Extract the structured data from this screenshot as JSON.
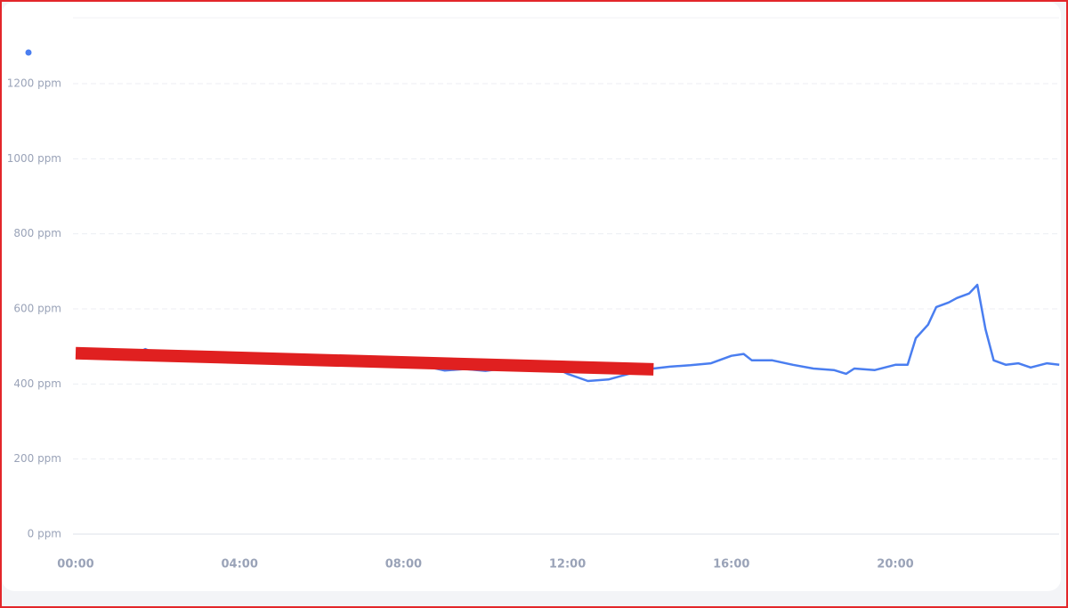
{
  "chart_data": {
    "type": "line",
    "x": [
      0,
      0.5,
      1,
      1.5,
      1.7,
      2,
      2.5,
      3,
      3.5,
      4,
      4.5,
      5,
      5.5,
      6,
      6.5,
      7,
      7.5,
      8,
      8.5,
      9,
      9.5,
      10,
      10.5,
      11,
      11.5,
      12,
      12.5,
      13,
      13.5,
      14,
      14.5,
      15,
      15.5,
      16,
      16.3,
      16.5,
      17,
      17.5,
      18,
      18.5,
      18.8,
      19,
      19.5,
      20,
      20.3,
      20.5,
      20.8,
      21,
      21.3,
      21.5,
      21.8,
      22,
      22.2,
      22.4,
      22.7,
      23,
      23.3,
      23.7,
      24
    ],
    "series": [
      {
        "color": "#4a7ef0",
        "values": [
          480,
          478,
          476,
          482,
          493,
          478,
          472,
          470,
          471,
          468,
          466,
          470,
          472,
          468,
          462,
          460,
          458,
          452,
          448,
          436,
          440,
          435,
          442,
          448,
          455,
          427,
          408,
          412,
          427,
          440,
          446,
          450,
          455,
          475,
          480,
          463,
          463,
          451,
          441,
          437,
          427,
          441,
          437,
          451,
          451,
          522,
          558,
          605,
          617,
          629,
          641,
          664,
          546,
          463,
          451,
          455,
          444,
          455,
          451
        ]
      },
      {
        "color": "#e02020",
        "x": [
          0,
          14.1
        ],
        "values": [
          482,
          439
        ]
      }
    ],
    "xlim": [
      0,
      24
    ],
    "xticks": [
      {
        "value": 0,
        "label": "00:00"
      },
      {
        "value": 4,
        "label": "04:00"
      },
      {
        "value": 8,
        "label": "08:00"
      },
      {
        "value": 12,
        "label": "12:00"
      },
      {
        "value": 16,
        "label": "16:00"
      },
      {
        "value": 20,
        "label": "20:00"
      }
    ],
    "ylim": [
      0,
      1200
    ],
    "yticks": [
      {
        "value": 0,
        "label": "0 ppm"
      },
      {
        "value": 200,
        "label": "200 ppm"
      },
      {
        "value": 400,
        "label": "400 ppm"
      },
      {
        "value": 600,
        "label": "600 ppm"
      },
      {
        "value": 800,
        "label": "800 ppm"
      },
      {
        "value": 1000,
        "label": "1000 ppm"
      },
      {
        "value": 1200,
        "label": "1200 ppm"
      }
    ],
    "grid": true
  }
}
